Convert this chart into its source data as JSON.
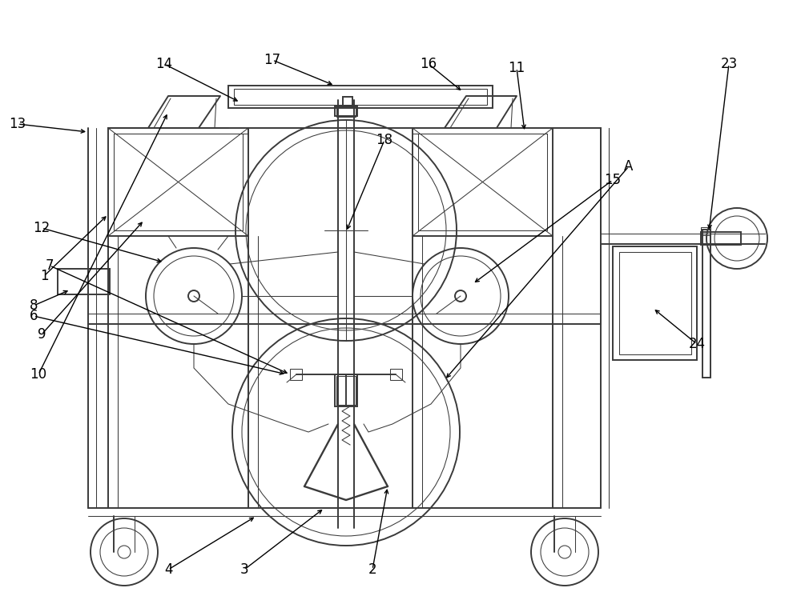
{
  "bg_color": "#ffffff",
  "line_color": "#3a3a3a",
  "lw": 1.4,
  "tlw": 0.75,
  "fs": 12
}
